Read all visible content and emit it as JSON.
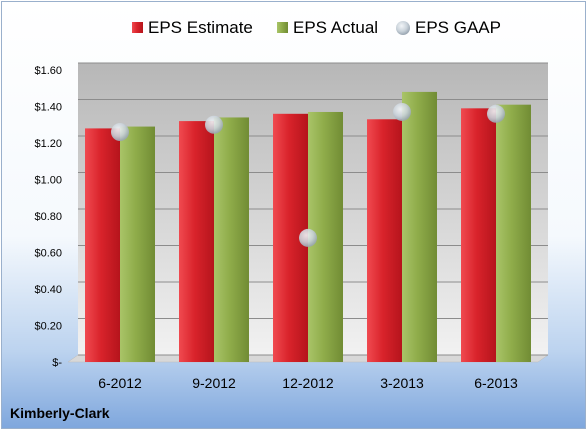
{
  "company": "Kimberly-Clark",
  "colors": {
    "estimate": "#d9232b",
    "actual": "#8fac4a",
    "gaap": "#c9d2da"
  },
  "chart_data": {
    "type": "bar",
    "categories": [
      "6-2012",
      "9-2012",
      "12-2012",
      "3-2013",
      "6-2013"
    ],
    "series": [
      {
        "name": "EPS Estimate",
        "kind": "bar",
        "values": [
          1.28,
          1.32,
          1.36,
          1.33,
          1.39
        ]
      },
      {
        "name": "EPS Actual",
        "kind": "bar",
        "values": [
          1.29,
          1.34,
          1.37,
          1.48,
          1.41
        ]
      },
      {
        "name": "EPS GAAP",
        "kind": "marker",
        "values": [
          1.26,
          1.3,
          0.68,
          1.37,
          1.36
        ]
      }
    ],
    "yticks": [
      "$-",
      "$0.20",
      "$0.40",
      "$0.60",
      "$0.80",
      "$1.00",
      "$1.20",
      "$1.40",
      "$1.60"
    ],
    "ylim": [
      0,
      1.6
    ],
    "grid": true,
    "legend": "top"
  }
}
